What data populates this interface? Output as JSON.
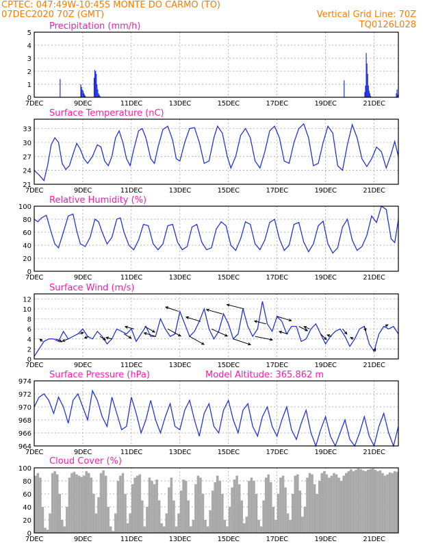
{
  "header": {
    "line1_left": "CPTEC:  047:49W-10:45S  MONTE DO CARMO (TO)",
    "line2_left": "07DEC2020 70Z (GMT)",
    "line2_right": "Vertical Grid Line: 70Z",
    "line3_right": "TQ0126L028"
  },
  "x_tick_labels": [
    "7DEC",
    "9DEC",
    "11DEC",
    "13DEC",
    "15DEC",
    "17DEC",
    "19DEC",
    "21DEC"
  ],
  "x_tick_days": [
    0,
    2,
    4,
    6,
    8,
    10,
    12,
    14
  ],
  "x_range_days": [
    0,
    15
  ],
  "chart_data": [
    {
      "type": "bar",
      "title": "Precipitation (mm/h)",
      "ylim": [
        0,
        5
      ],
      "yticks": [
        0,
        1,
        2,
        3,
        4,
        5
      ],
      "color": "#1f2fe0",
      "x": [
        1.05,
        1.9,
        1.93,
        1.96,
        2.0,
        2.03,
        2.06,
        2.09,
        2.45,
        2.48,
        2.51,
        2.54,
        2.57,
        2.6,
        2.63,
        2.66,
        2.69,
        12.75,
        13.6,
        13.63,
        13.66,
        13.69,
        13.72,
        13.75,
        13.78,
        13.81,
        13.84,
        14.9,
        14.93,
        14.96
      ],
      "values": [
        1.4,
        1.0,
        0.8,
        0.6,
        0.5,
        0.3,
        0.2,
        0.1,
        1.5,
        2.1,
        2.0,
        1.8,
        1.0,
        0.6,
        0.3,
        0.2,
        0.1,
        1.3,
        0.4,
        0.9,
        3.4,
        2.6,
        1.8,
        0.9,
        0.5,
        0.3,
        0.1,
        0.3,
        0.6,
        0.2
      ]
    },
    {
      "type": "line",
      "title": "Surface Temperature (nC)",
      "ylim": [
        21,
        35
      ],
      "yticks": [
        21,
        24,
        27,
        30,
        33
      ],
      "color": "#1f2fe0",
      "x": [
        0.0,
        0.2,
        0.4,
        0.55,
        0.7,
        0.85,
        1.0,
        1.15,
        1.3,
        1.45,
        1.6,
        1.75,
        1.9,
        2.05,
        2.2,
        2.4,
        2.6,
        2.75,
        2.9,
        3.05,
        3.2,
        3.35,
        3.5,
        3.65,
        3.8,
        3.95,
        4.1,
        4.3,
        4.45,
        4.6,
        4.8,
        4.95,
        5.1,
        5.3,
        5.5,
        5.7,
        5.85,
        6.0,
        6.2,
        6.4,
        6.6,
        6.8,
        7.0,
        7.2,
        7.4,
        7.55,
        7.75,
        7.95,
        8.1,
        8.3,
        8.5,
        8.7,
        8.9,
        9.1,
        9.3,
        9.5,
        9.7,
        9.9,
        10.1,
        10.3,
        10.5,
        10.7,
        10.9,
        11.1,
        11.3,
        11.5,
        11.7,
        11.9,
        12.1,
        12.3,
        12.5,
        12.7,
        12.9,
        13.1,
        13.3,
        13.5,
        13.7,
        13.9,
        14.1,
        14.3,
        14.5,
        14.7,
        14.85,
        15.0
      ],
      "values": [
        24.0,
        23.0,
        21.8,
        25.0,
        29.5,
        31.0,
        30.0,
        25.5,
        24.2,
        25.0,
        27.5,
        29.8,
        28.5,
        26.5,
        25.5,
        27.0,
        29.5,
        29.0,
        26.0,
        25.0,
        27.0,
        31.0,
        32.5,
        30.0,
        26.5,
        25.0,
        28.5,
        32.5,
        33.0,
        31.0,
        26.5,
        25.5,
        29.0,
        32.8,
        33.5,
        30.5,
        26.5,
        26.0,
        30.0,
        33.0,
        33.2,
        30.0,
        25.5,
        26.0,
        31.0,
        33.5,
        32.0,
        27.0,
        24.5,
        27.0,
        31.5,
        33.0,
        31.0,
        26.0,
        24.5,
        28.0,
        32.5,
        33.5,
        31.0,
        26.0,
        25.5,
        30.0,
        33.0,
        34.0,
        31.0,
        25.0,
        25.5,
        30.0,
        33.5,
        32.0,
        25.0,
        24.0,
        29.5,
        33.8,
        31.0,
        26.5,
        24.8,
        26.5,
        29.0,
        28.0,
        24.5,
        27.5,
        30.2,
        27.0
      ]
    },
    {
      "type": "line",
      "title": "Relative Humidity (%)",
      "ylim": [
        0,
        100
      ],
      "yticks": [
        0,
        20,
        40,
        60,
        80,
        100
      ],
      "color": "#1f2fe0",
      "x": [
        0.0,
        0.15,
        0.3,
        0.5,
        0.7,
        0.85,
        1.0,
        1.2,
        1.4,
        1.6,
        1.75,
        1.9,
        2.1,
        2.3,
        2.5,
        2.65,
        2.8,
        3.0,
        3.2,
        3.4,
        3.55,
        3.7,
        3.9,
        4.1,
        4.3,
        4.5,
        4.7,
        4.9,
        5.1,
        5.3,
        5.5,
        5.7,
        5.9,
        6.1,
        6.3,
        6.5,
        6.7,
        6.9,
        7.1,
        7.3,
        7.5,
        7.7,
        7.9,
        8.1,
        8.3,
        8.5,
        8.7,
        8.9,
        9.1,
        9.3,
        9.5,
        9.7,
        9.9,
        10.1,
        10.3,
        10.5,
        10.7,
        10.9,
        11.1,
        11.3,
        11.5,
        11.7,
        11.9,
        12.1,
        12.3,
        12.5,
        12.7,
        12.9,
        13.1,
        13.3,
        13.5,
        13.7,
        13.9,
        14.1,
        14.3,
        14.5,
        14.7,
        14.85,
        15.0
      ],
      "values": [
        80,
        76,
        82,
        86,
        60,
        42,
        36,
        60,
        85,
        88,
        62,
        42,
        38,
        52,
        80,
        76,
        60,
        42,
        52,
        80,
        82,
        60,
        40,
        33,
        48,
        72,
        70,
        42,
        33,
        42,
        70,
        72,
        45,
        33,
        38,
        68,
        72,
        45,
        33,
        36,
        65,
        76,
        70,
        40,
        32,
        50,
        76,
        72,
        42,
        33,
        48,
        75,
        80,
        50,
        32,
        40,
        72,
        75,
        45,
        30,
        42,
        70,
        77,
        42,
        28,
        36,
        68,
        80,
        48,
        32,
        38,
        55,
        85,
        75,
        100,
        95,
        50,
        44,
        79
      ]
    },
    {
      "type": "line",
      "title": "Surface Wind (m/s)",
      "ylim": [
        0,
        13
      ],
      "yticks": [
        0,
        2,
        4,
        6,
        8,
        10,
        12
      ],
      "color": "#1f2fe0",
      "x": [
        0.0,
        0.2,
        0.4,
        0.6,
        0.8,
        1.0,
        1.2,
        1.4,
        1.6,
        1.8,
        2.0,
        2.2,
        2.4,
        2.6,
        2.8,
        3.0,
        3.2,
        3.4,
        3.6,
        3.8,
        4.0,
        4.2,
        4.4,
        4.6,
        4.8,
        5.0,
        5.2,
        5.4,
        5.6,
        5.8,
        6.0,
        6.2,
        6.4,
        6.6,
        6.8,
        7.0,
        7.2,
        7.4,
        7.6,
        7.8,
        8.0,
        8.2,
        8.4,
        8.6,
        8.8,
        9.0,
        9.2,
        9.4,
        9.6,
        9.8,
        10.0,
        10.2,
        10.4,
        10.6,
        10.8,
        11.0,
        11.2,
        11.4,
        11.6,
        11.8,
        12.0,
        12.2,
        12.4,
        12.6,
        12.8,
        13.0,
        13.2,
        13.4,
        13.6,
        13.8,
        14.0,
        14.2,
        14.4,
        14.6,
        14.8,
        15.0
      ],
      "values": [
        0.5,
        2.0,
        3.5,
        4.0,
        4.0,
        3.5,
        5.5,
        4.0,
        4.5,
        5.0,
        6.0,
        4.5,
        4.0,
        5.5,
        4.5,
        3.0,
        4.0,
        6.0,
        5.5,
        5.0,
        6.0,
        3.5,
        5.0,
        6.5,
        4.5,
        4.5,
        8.0,
        6.0,
        4.5,
        5.0,
        9.5,
        7.0,
        4.5,
        5.5,
        7.5,
        10.0,
        6.0,
        4.0,
        5.5,
        9.0,
        7.0,
        4.0,
        5.0,
        10.0,
        6.5,
        4.5,
        6.0,
        11.5,
        7.0,
        5.5,
        8.5,
        7.5,
        5.0,
        6.5,
        6.5,
        3.5,
        4.0,
        6.0,
        7.0,
        5.0,
        3.0,
        4.5,
        5.5,
        6.0,
        4.5,
        2.5,
        4.0,
        6.0,
        6.5,
        3.0,
        1.5,
        5.0,
        6.5,
        6.0,
        6.5,
        5.0
      ],
      "wind_barbs": {
        "x": [
          0.35,
          0.9,
          1.4,
          1.85,
          2.25,
          2.7,
          3.2,
          3.7,
          4.1,
          4.55,
          5.0,
          5.5,
          5.95,
          6.4,
          6.85,
          7.3,
          7.75,
          8.2,
          8.65,
          9.1,
          9.55,
          10.0,
          10.45,
          10.9,
          11.35,
          11.8,
          12.25,
          12.7,
          13.15,
          13.6,
          14.0,
          14.45
        ],
        "u": [
          -1,
          2,
          -2,
          1.5,
          -1.5,
          2,
          -2,
          2.5,
          -3,
          3.5,
          -4,
          4.5,
          -4.5,
          5,
          -5,
          5.5,
          -5.5,
          6,
          -6,
          6,
          -4,
          5,
          -3,
          3,
          -2,
          2,
          -1.5,
          1.5,
          -1,
          0.5,
          0.5,
          1
        ],
        "v": [
          0.8,
          -1,
          -0.8,
          0.5,
          -0.6,
          -1.2,
          0.5,
          -1.5,
          0.8,
          -2,
          1.2,
          -2.5,
          1.5,
          -2.8,
          1.5,
          -2.5,
          1.5,
          -2,
          1.5,
          -1.2,
          1,
          -1.5,
          0.8,
          -1.5,
          0.8,
          -2,
          0.5,
          -1.8,
          0.5,
          -1.5,
          1,
          0.6
        ]
      }
    },
    {
      "type": "line",
      "title": "Surface Pressure (hPa)",
      "annotation": "Model Altitude: 365.862  m",
      "ylim": [
        964,
        974
      ],
      "yticks": [
        964,
        966,
        968,
        970,
        972,
        974
      ],
      "color": "#1f2fe0",
      "x": [
        0.0,
        0.2,
        0.4,
        0.6,
        0.8,
        1.0,
        1.2,
        1.4,
        1.6,
        1.8,
        2.0,
        2.2,
        2.4,
        2.6,
        2.8,
        3.0,
        3.2,
        3.4,
        3.6,
        3.8,
        4.0,
        4.2,
        4.4,
        4.6,
        4.8,
        5.0,
        5.2,
        5.4,
        5.6,
        5.8,
        6.0,
        6.2,
        6.4,
        6.6,
        6.8,
        7.0,
        7.2,
        7.4,
        7.6,
        7.8,
        8.0,
        8.2,
        8.4,
        8.6,
        8.8,
        9.0,
        9.2,
        9.4,
        9.6,
        9.8,
        10.0,
        10.2,
        10.4,
        10.6,
        10.8,
        11.0,
        11.2,
        11.4,
        11.6,
        11.8,
        12.0,
        12.2,
        12.4,
        12.6,
        12.8,
        13.0,
        13.2,
        13.4,
        13.6,
        13.8,
        14.0,
        14.2,
        14.4,
        14.6,
        14.8,
        15.0
      ],
      "values": [
        970.0,
        971.5,
        972.0,
        971.0,
        969.0,
        971.5,
        970.0,
        967.5,
        971.0,
        972.0,
        970.0,
        968.0,
        972.5,
        971.0,
        968.5,
        967.0,
        971.5,
        969.0,
        966.5,
        967.0,
        971.5,
        969.0,
        966.0,
        968.0,
        971.0,
        968.0,
        966.0,
        968.5,
        970.5,
        967.0,
        966.5,
        969.5,
        971.0,
        968.0,
        965.5,
        969.0,
        970.5,
        967.0,
        966.0,
        969.5,
        971.0,
        968.0,
        966.0,
        969.5,
        970.5,
        967.0,
        965.5,
        968.5,
        970.0,
        967.0,
        965.5,
        968.0,
        970.0,
        966.5,
        965.0,
        967.5,
        969.5,
        966.0,
        964.0,
        966.5,
        968.5,
        965.5,
        963.5,
        966.0,
        968.0,
        965.0,
        963.5,
        966.0,
        968.5,
        965.5,
        964.0,
        967.0,
        969.0,
        966.0,
        962.5,
        967.0
      ]
    },
    {
      "type": "bar",
      "title": "Cloud Cover (%)",
      "ylim": [
        0,
        100
      ],
      "yticks": [
        0,
        20,
        40,
        60,
        80,
        100
      ],
      "color": "#a9a9a9",
      "x": [
        0.0,
        0.1,
        0.2,
        0.3,
        0.4,
        0.5,
        0.6,
        0.7,
        0.8,
        0.9,
        1.0,
        1.1,
        1.2,
        1.3,
        1.4,
        1.5,
        1.6,
        1.7,
        1.8,
        1.9,
        2.0,
        2.1,
        2.2,
        2.3,
        2.4,
        2.5,
        2.6,
        2.7,
        2.8,
        2.9,
        3.0,
        3.1,
        3.2,
        3.3,
        3.4,
        3.5,
        3.6,
        3.7,
        3.8,
        3.9,
        4.0,
        4.1,
        4.2,
        4.3,
        4.4,
        4.5,
        4.6,
        4.7,
        4.8,
        4.9,
        5.0,
        5.1,
        5.2,
        5.3,
        5.4,
        5.5,
        5.6,
        5.7,
        5.8,
        5.9,
        6.0,
        6.1,
        6.2,
        6.3,
        6.4,
        6.5,
        6.6,
        6.7,
        6.8,
        6.9,
        7.0,
        7.1,
        7.2,
        7.3,
        7.4,
        7.5,
        7.6,
        7.7,
        7.8,
        7.9,
        8.0,
        8.1,
        8.2,
        8.3,
        8.4,
        8.5,
        8.6,
        8.7,
        8.8,
        8.9,
        9.0,
        9.1,
        9.2,
        9.3,
        9.4,
        9.5,
        9.6,
        9.7,
        9.8,
        9.9,
        10.0,
        10.1,
        10.2,
        10.3,
        10.4,
        10.5,
        10.6,
        10.7,
        10.8,
        10.9,
        11.0,
        11.1,
        11.2,
        11.3,
        11.4,
        11.5,
        11.6,
        11.7,
        11.8,
        11.9,
        12.0,
        12.1,
        12.2,
        12.3,
        12.4,
        12.5,
        12.6,
        12.7,
        12.8,
        12.9,
        13.0,
        13.1,
        13.2,
        13.3,
        13.4,
        13.5,
        13.6,
        13.7,
        13.8,
        13.9,
        14.0,
        14.1,
        14.2,
        14.3,
        14.4,
        14.5,
        14.6,
        14.7,
        14.8,
        14.9
      ],
      "values": [
        88,
        92,
        85,
        40,
        8,
        5,
        30,
        92,
        95,
        90,
        60,
        20,
        10,
        40,
        85,
        92,
        94,
        90,
        88,
        86,
        88,
        95,
        92,
        85,
        60,
        30,
        55,
        92,
        96,
        88,
        40,
        10,
        3,
        30,
        80,
        88,
        92,
        60,
        15,
        30,
        75,
        85,
        88,
        90,
        50,
        10,
        40,
        85,
        80,
        75,
        82,
        50,
        15,
        10,
        30,
        70,
        85,
        50,
        10,
        30,
        65,
        82,
        80,
        50,
        10,
        20,
        75,
        88,
        85,
        60,
        20,
        10,
        35,
        65,
        78,
        88,
        80,
        60,
        20,
        10,
        40,
        70,
        82,
        88,
        75,
        50,
        15,
        25,
        80,
        85,
        80,
        60,
        20,
        10,
        50,
        85,
        90,
        78,
        40,
        20,
        60,
        85,
        88,
        70,
        30,
        20,
        60,
        88,
        90,
        65,
        25,
        40,
        85,
        92,
        90,
        75,
        60,
        80,
        92,
        95,
        90,
        85,
        88,
        92,
        90,
        85,
        80,
        88,
        92,
        95,
        98,
        95,
        97,
        99,
        98,
        96,
        95,
        97,
        98,
        99,
        97,
        95,
        96,
        92,
        88,
        90,
        93,
        92,
        95,
        94
      ]
    }
  ]
}
